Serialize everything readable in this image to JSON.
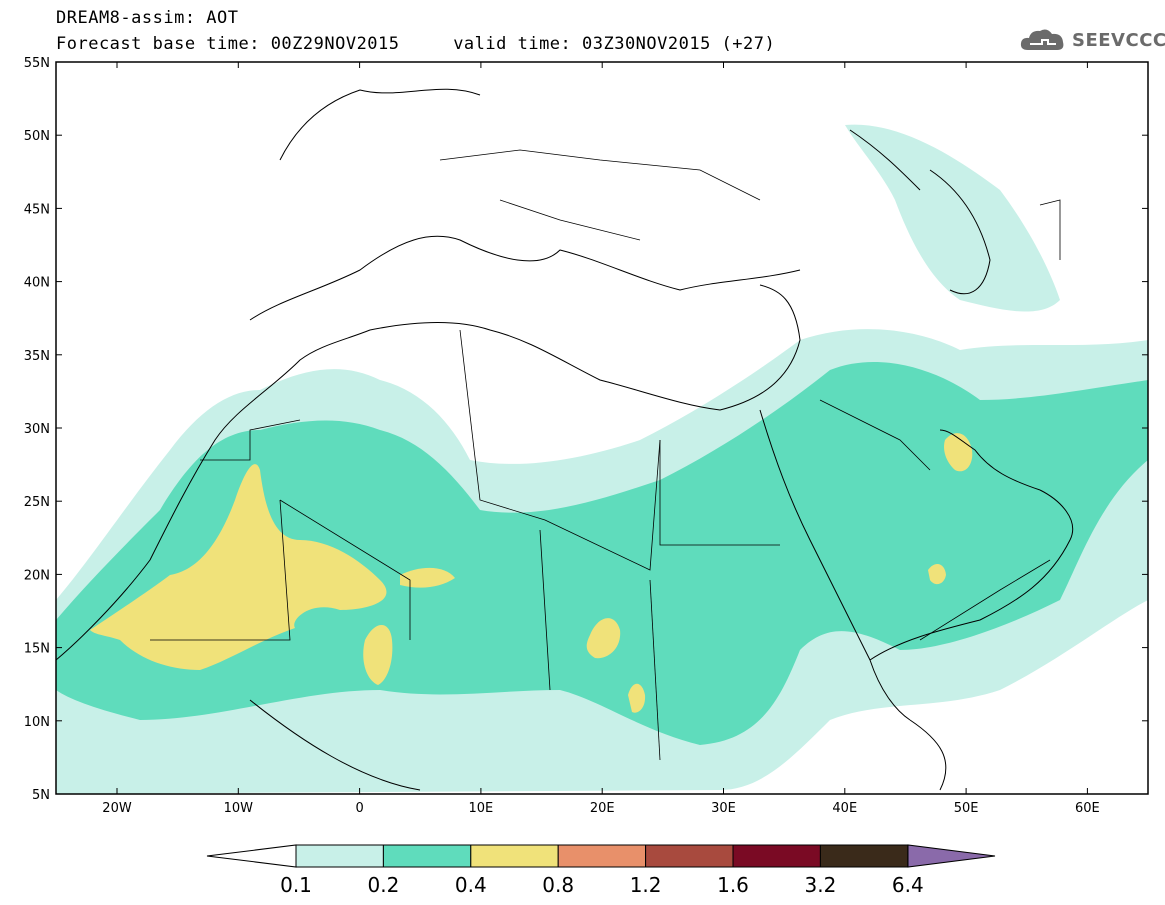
{
  "title": {
    "line1": "DREAM8-assim: AOT",
    "line2": "Forecast base time: 00Z29NOV2015     valid time: 03Z30NOV2015 (+27)"
  },
  "logo": {
    "text": "SEEVCCC",
    "icon": "cloud-icon"
  },
  "map": {
    "lat_labels": [
      "55N",
      "50N",
      "45N",
      "40N",
      "35N",
      "30N",
      "25N",
      "20N",
      "15N",
      "10N",
      "5N"
    ],
    "lon_labels": [
      "20W",
      "10W",
      "0",
      "10E",
      "20E",
      "30E",
      "40E",
      "50E",
      "60E"
    ]
  },
  "colorbar": {
    "labels": [
      "0.1",
      "0.2",
      "0.4",
      "0.8",
      "1.2",
      "1.6",
      "3.2",
      "6.4"
    ],
    "colors": [
      "#ffffff",
      "#c8f0e8",
      "#5fdcbc",
      "#f0e27a",
      "#e8906a",
      "#a84a3e",
      "#7a0a24",
      "#3a2a1a",
      "#8a6aaa"
    ]
  }
}
